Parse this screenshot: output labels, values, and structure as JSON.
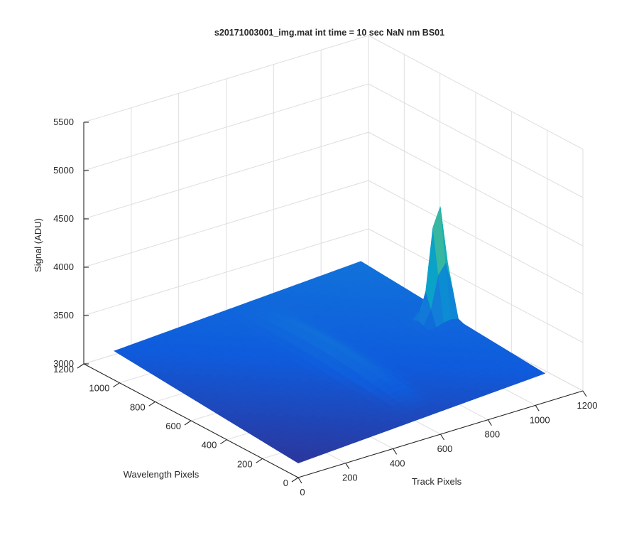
{
  "chart_data": {
    "type": "surface",
    "title": "s20171003001_img.mat int time = 10 sec  NaN nm BS01",
    "xlabel": "Track Pixels",
    "ylabel": "Wavelength Pixels",
    "zlabel": "Signal (ADU)",
    "xlim": [
      0,
      1200
    ],
    "ylim": [
      0,
      1200
    ],
    "zlim": [
      3000,
      5500
    ],
    "xticks": [
      "0",
      "200",
      "400",
      "600",
      "800",
      "1000",
      "1200"
    ],
    "yticks": [
      "0",
      "200",
      "400",
      "600",
      "800",
      "1000",
      "1200"
    ],
    "zticks": [
      "3000",
      "3500",
      "4000",
      "4500",
      "5000",
      "5500"
    ],
    "grid": true,
    "colormap": "parula",
    "surface": {
      "x_extent": [
        0,
        1040
      ],
      "y_extent": [
        0,
        1030
      ],
      "baseline_at_origin": 3150,
      "baseline_far_corner": 3450,
      "features": [
        {
          "kind": "peak",
          "x": 1000,
          "y": 540,
          "z": 4600
        },
        {
          "kind": "ridge",
          "x": 560,
          "y_range": [
            50,
            1000
          ],
          "z": 3350
        }
      ]
    }
  }
}
